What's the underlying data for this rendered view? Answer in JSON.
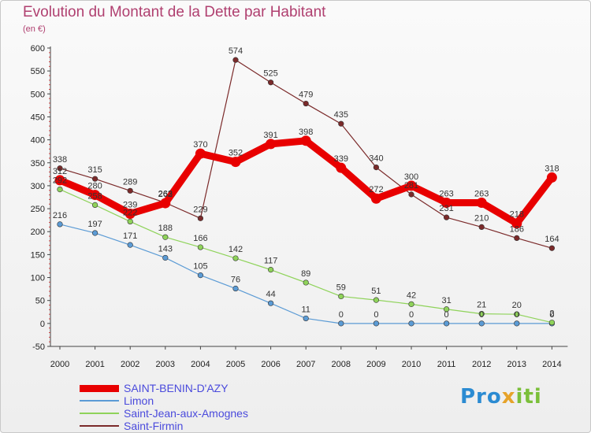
{
  "title": "Evolution du Montant de la Dette par Habitant",
  "subtitle": "(en €)",
  "logo": {
    "part1": "Pro",
    "part2": "x",
    "part3": "iti"
  },
  "chart_data": {
    "type": "line",
    "x": [
      "2000",
      "2001",
      "2002",
      "2003",
      "2004",
      "2005",
      "2006",
      "2007",
      "2008",
      "2009",
      "2010",
      "2011",
      "2012",
      "2013",
      "2014"
    ],
    "ylim": [
      -50,
      600
    ],
    "yticks": [
      -50,
      0,
      50,
      100,
      150,
      200,
      250,
      300,
      350,
      400,
      450,
      500,
      550,
      600
    ],
    "grid": false,
    "legend_position": "bottom",
    "series": [
      {
        "name": "SAINT-BENIN-D'AZY",
        "color": "#e80000",
        "values": [
          312,
          280,
          239,
          262,
          370,
          352,
          391,
          398,
          339,
          272,
          300,
          263,
          263,
          218,
          318
        ],
        "labels": [
          "312",
          "280",
          "239",
          "262",
          "370",
          "352",
          "391",
          "398",
          "339",
          "272",
          "300",
          "263",
          "263",
          "218",
          "318"
        ]
      },
      {
        "name": "Limon",
        "color": "#5b9bd5",
        "values": [
          216,
          197,
          171,
          143,
          105,
          76,
          44,
          11,
          0,
          0,
          0,
          0,
          0,
          0,
          0
        ],
        "labels": [
          "216",
          "197",
          "171",
          "143",
          "105",
          "76",
          "44",
          "11",
          "0",
          "0",
          "0",
          "0",
          "0",
          "0",
          "0"
        ]
      },
      {
        "name": "Saint-Jean-aux-Amognes",
        "color": "#8fd35a",
        "values": [
          292,
          258,
          222,
          188,
          166,
          142,
          117,
          89,
          59,
          51,
          42,
          31,
          21,
          20,
          2
        ],
        "labels": [
          "292",
          "258",
          "222",
          "188",
          "166",
          "142",
          "117",
          "89",
          "59",
          "51",
          "42",
          "31",
          "21",
          "20",
          "2"
        ]
      },
      {
        "name": "Saint-Firmin",
        "color": "#7b2a2a",
        "values": [
          338,
          315,
          289,
          263,
          229,
          574,
          525,
          479,
          435,
          340,
          281,
          231,
          210,
          186,
          164
        ],
        "labels": [
          "338",
          "315",
          "289",
          "263",
          "229",
          "574",
          "525",
          "479",
          "435",
          "340",
          "281",
          "231",
          "210",
          "186",
          "164"
        ]
      }
    ]
  }
}
